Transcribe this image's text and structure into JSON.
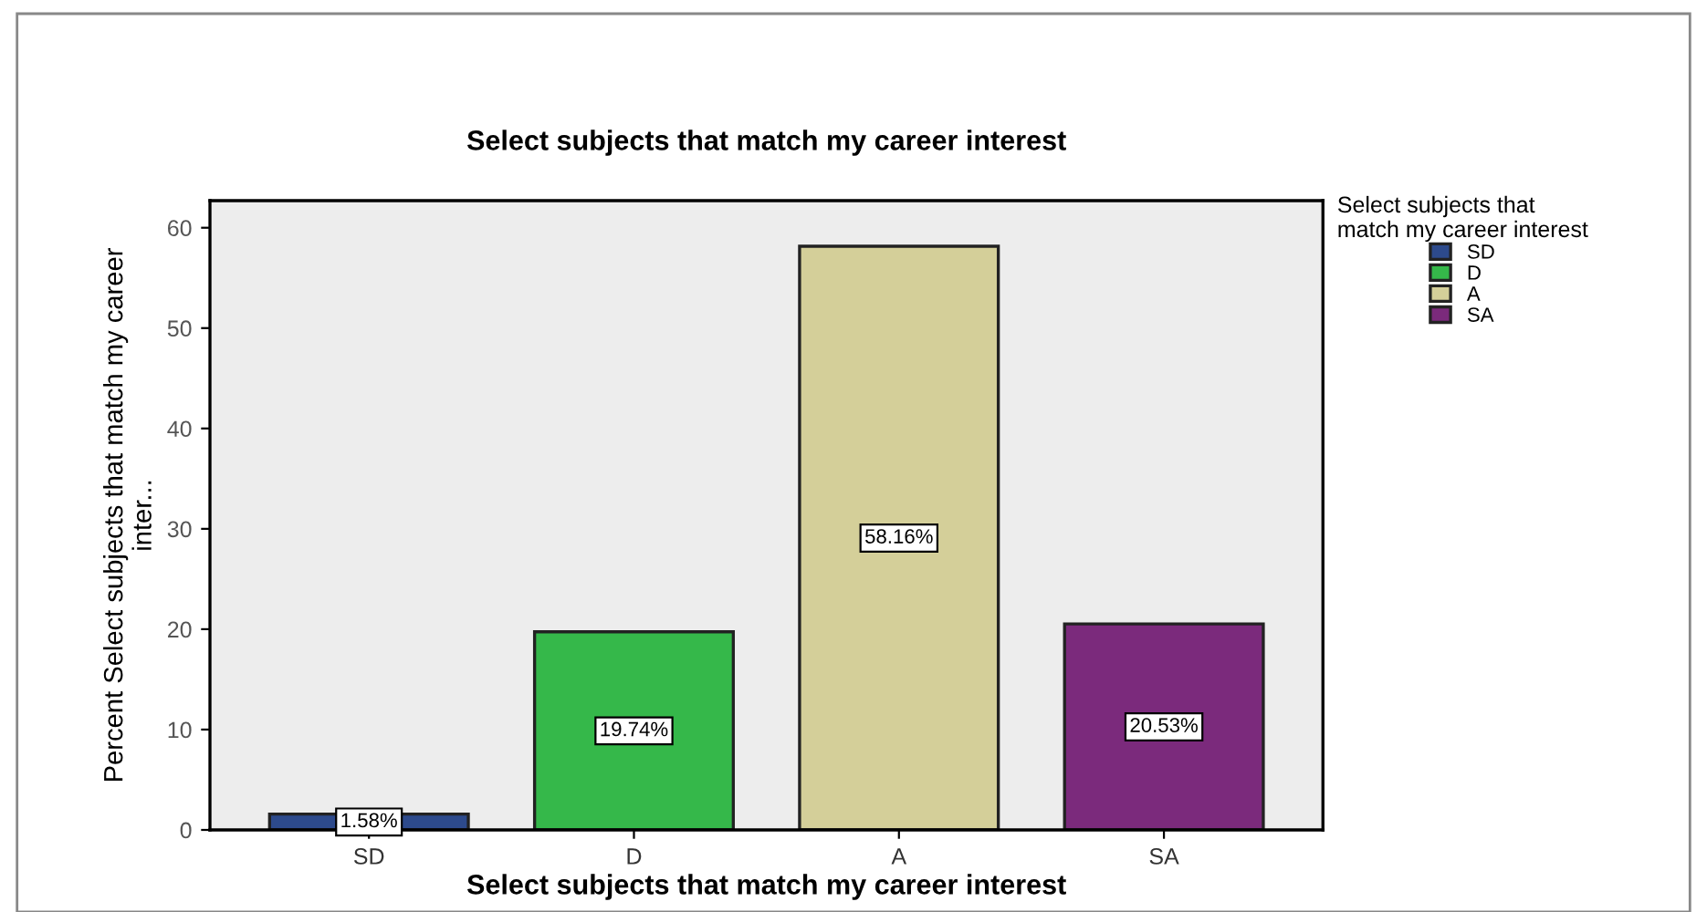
{
  "chart_data": {
    "type": "bar",
    "title": "Select subjects that match my career interest",
    "xlabel": "Select subjects that match my career interest",
    "ylabel": "Percent Select subjects that match my career\ninter...",
    "legend_title": "Select subjects that\nmatch my career interest",
    "categories": [
      "SD",
      "D",
      "A",
      "SA"
    ],
    "series": [
      {
        "name": "SD",
        "color": "#2d4a8c",
        "values": [
          1.58,
          null,
          null,
          null
        ],
        "value_labels": [
          "1.58%",
          null,
          null,
          null
        ]
      },
      {
        "name": "D",
        "color": "#35b84a",
        "values": [
          null,
          19.74,
          null,
          null
        ],
        "value_labels": [
          null,
          "19.74%",
          null,
          null
        ]
      },
      {
        "name": "A",
        "color": "#d4cf99",
        "values": [
          null,
          null,
          58.16,
          null
        ],
        "value_labels": [
          null,
          null,
          "58.16%",
          null
        ]
      },
      {
        "name": "SA",
        "color": "#7b2a7c",
        "values": [
          null,
          null,
          null,
          20.53
        ],
        "value_labels": [
          null,
          null,
          null,
          "20.53%"
        ]
      }
    ],
    "ylim": [
      0,
      62.7
    ],
    "yticks": [
      0,
      10,
      20,
      30,
      40,
      50,
      60
    ],
    "grid": false,
    "legend": "top right"
  }
}
